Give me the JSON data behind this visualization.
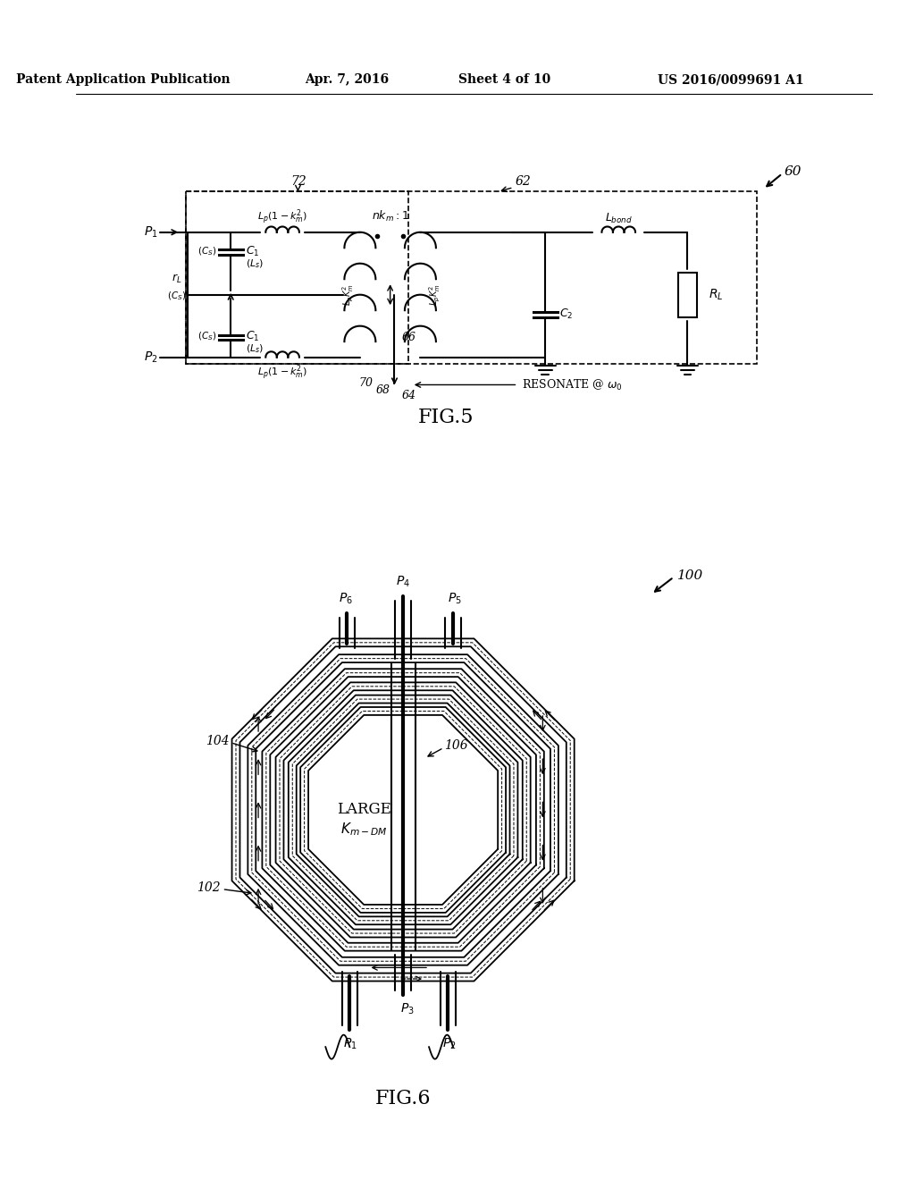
{
  "bg_color": "#ffffff",
  "header_text": "Patent Application Publication",
  "header_date": "Apr. 7, 2016",
  "header_sheet": "Sheet 4 of 10",
  "header_patent": "US 2016/0099691 A1",
  "fig5_label": "FIG.5",
  "fig6_label": "FIG.6",
  "fig5_ref": "60",
  "fig5_box1_ref": "72",
  "fig5_box2_ref": "62",
  "fig6_ref": "100",
  "fig6_ref102": "102",
  "fig6_ref104": "104",
  "fig6_ref106": "106"
}
